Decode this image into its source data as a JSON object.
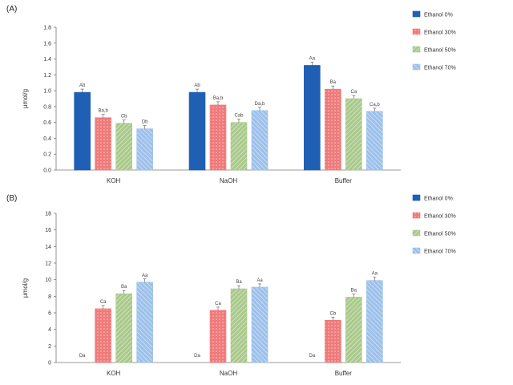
{
  "chart_data": [
    {
      "type": "bar",
      "panel_label": "(A)",
      "ylabel": "μmol/g",
      "categories": [
        "KOH",
        "NaOH",
        "Buffer"
      ],
      "ylim": [
        0,
        1.8
      ],
      "yticks": [
        0,
        0.2,
        0.4,
        0.6,
        0.8,
        1.0,
        1.2,
        1.4,
        1.6,
        1.8
      ],
      "legend_position": "right",
      "grid": false,
      "series": [
        {
          "name": "Ethanol 0%",
          "color": "#1f5fb4",
          "pattern": "solid",
          "values": [
            0.98,
            0.98,
            1.32
          ],
          "labels": [
            "Ab",
            "Ab",
            "Aa"
          ]
        },
        {
          "name": "Ethanol 30%",
          "color": "#f07a7a",
          "pattern": "dots",
          "values": [
            0.66,
            0.82,
            1.02
          ],
          "labels": [
            "Ba,b",
            "Ba,b",
            "Ba"
          ]
        },
        {
          "name": "Ethanol 50%",
          "color": "#a9c98a",
          "pattern": "diag",
          "values": [
            0.59,
            0.6,
            0.9
          ],
          "labels": [
            "Cb",
            "Cab",
            "Ca"
          ]
        },
        {
          "name": "Ethanol 70%",
          "color": "#9cc0ea",
          "pattern": "diag2",
          "values": [
            0.52,
            0.75,
            0.74
          ],
          "labels": [
            "Db",
            "Da,b",
            "Ca,b"
          ]
        }
      ]
    },
    {
      "type": "bar",
      "panel_label": "(B)",
      "ylabel": "μmol/g",
      "categories": [
        "KOH",
        "NaOH",
        "Buffer"
      ],
      "ylim": [
        0,
        18
      ],
      "yticks": [
        0,
        2,
        4,
        6,
        8,
        10,
        12,
        14,
        16,
        18
      ],
      "legend_position": "right",
      "grid": false,
      "series": [
        {
          "name": "Ethanol 0%",
          "color": "#1f5fb4",
          "pattern": "solid",
          "values": [
            0,
            0,
            0
          ],
          "labels": [
            "Da",
            "Da",
            "Da"
          ]
        },
        {
          "name": "Ethanol 30%",
          "color": "#f07a7a",
          "pattern": "dots",
          "values": [
            6.5,
            6.3,
            5.1
          ],
          "labels": [
            "Ca",
            "Ca",
            "Cb"
          ]
        },
        {
          "name": "Ethanol 50%",
          "color": "#a9c98a",
          "pattern": "diag",
          "values": [
            8.3,
            8.9,
            7.9
          ],
          "labels": [
            "Ba",
            "Ba",
            "Ba"
          ]
        },
        {
          "name": "Ethanol 70%",
          "color": "#9cc0ea",
          "pattern": "diag2",
          "values": [
            9.7,
            9.1,
            9.9
          ],
          "labels": [
            "Aa",
            "Aa",
            "Aa"
          ]
        }
      ]
    }
  ]
}
